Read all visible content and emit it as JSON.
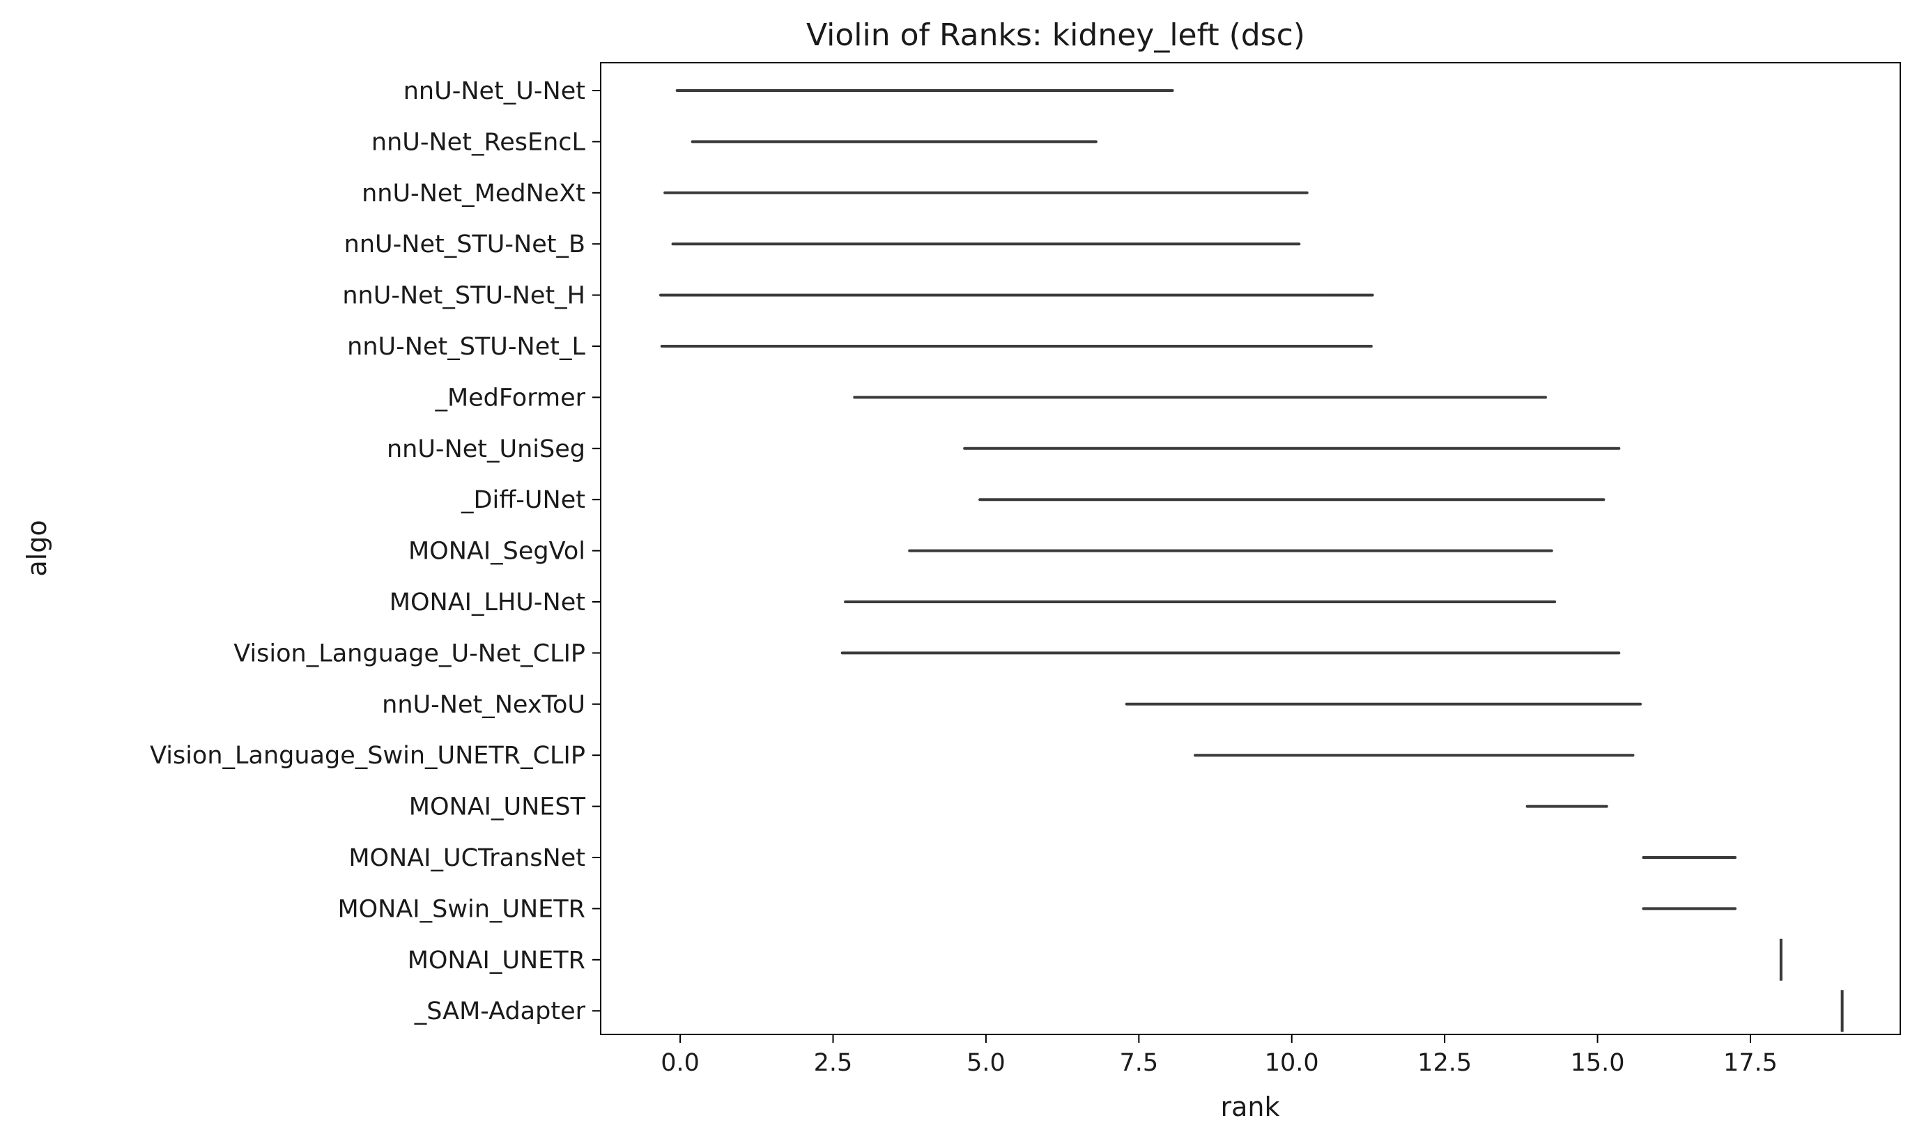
{
  "chart_data": {
    "type": "violin",
    "title": "Violin of Ranks: kidney_left (dsc)",
    "xlabel": "rank",
    "ylabel": "algo",
    "xlim": [
      -1.3,
      19.95
    ],
    "xticks": [
      0.0,
      2.5,
      5.0,
      7.5,
      10.0,
      12.5,
      15.0,
      17.5
    ],
    "xtick_labels": [
      "0.0",
      "2.5",
      "5.0",
      "7.5",
      "10.0",
      "12.5",
      "15.0",
      "17.5"
    ],
    "grid": false,
    "line_color": "#3a3a3a",
    "categories": [
      "nnU-Net_U-Net",
      "nnU-Net_ResEncL",
      "nnU-Net_MedNeXt",
      "nnU-Net_STU-Net_B",
      "nnU-Net_STU-Net_H",
      "nnU-Net_STU-Net_L",
      "_MedFormer",
      "nnU-Net_UniSeg",
      "_Diff-UNet",
      "MONAI_SegVol",
      "MONAI_LHU-Net",
      "Vision_Language_U-Net_CLIP",
      "nnU-Net_NexToU",
      "Vision_Language_Swin_UNETR_CLIP",
      "MONAI_UNEST",
      "MONAI_UCTransNet",
      "MONAI_Swin_UNETR",
      "MONAI_UNETR",
      "_SAM-Adapter"
    ],
    "ranges": [
      [
        -0.05,
        8.05
      ],
      [
        0.2,
        6.8
      ],
      [
        -0.25,
        10.25
      ],
      [
        -0.12,
        10.12
      ],
      [
        -0.32,
        11.32
      ],
      [
        -0.3,
        11.3
      ],
      [
        2.85,
        14.15
      ],
      [
        4.65,
        15.35
      ],
      [
        4.9,
        15.1
      ],
      [
        3.75,
        14.25
      ],
      [
        2.7,
        14.3
      ],
      [
        2.65,
        15.35
      ],
      [
        7.3,
        15.7
      ],
      [
        8.42,
        15.58
      ],
      [
        13.85,
        15.15
      ],
      [
        15.75,
        17.25
      ],
      [
        15.75,
        17.25
      ],
      [
        18.0,
        18.0
      ],
      [
        19.0,
        19.0
      ]
    ]
  }
}
